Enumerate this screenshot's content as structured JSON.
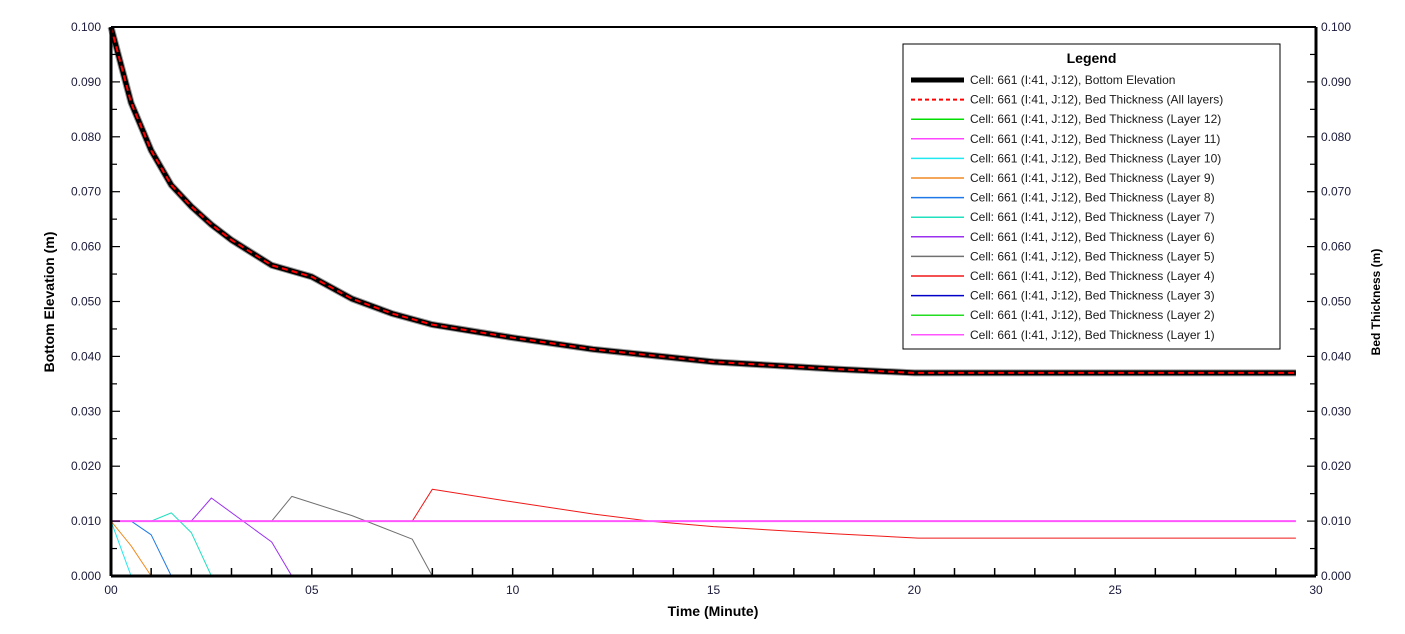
{
  "chart_data": {
    "type": "line",
    "title": "",
    "xlabel": "Time (Minute)",
    "ylabel": "Bottom Elevation (m)",
    "y2label": "Bed Thickness (m)",
    "xlim": [
      0,
      30
    ],
    "ylim": [
      0,
      0.1
    ],
    "y2lim": [
      0,
      0.1
    ],
    "grid": false,
    "legend_position": "upper right (inside)",
    "x_ticks": [
      "00",
      "05",
      "10",
      "15",
      "20",
      "25",
      "30"
    ],
    "y_ticks": [
      "0.000",
      "0.010",
      "0.020",
      "0.030",
      "0.040",
      "0.050",
      "0.060",
      "0.070",
      "0.080",
      "0.090",
      "0.100"
    ],
    "y2_ticks": [
      "0.000",
      "0.010",
      "0.020",
      "0.030",
      "0.040",
      "0.050",
      "0.060",
      "0.070",
      "0.080",
      "0.090",
      "0.100"
    ],
    "legend_title": "Legend",
    "series": [
      {
        "name": "Cell: 661 (I:41, J:12), Bottom Elevation",
        "color": "#000000",
        "width": 5,
        "dash": "",
        "x": [
          0,
          0.5,
          1.0,
          1.5,
          2.0,
          2.5,
          3.0,
          4.0,
          5.0,
          6.0,
          7.0,
          8.0,
          10.0,
          12.0,
          15.0,
          18.0,
          20.0,
          25.0,
          29.5
        ],
        "y": [
          0.1,
          0.0862,
          0.0775,
          0.0712,
          0.0673,
          0.064,
          0.0612,
          0.0566,
          0.0545,
          0.0505,
          0.0478,
          0.0458,
          0.0434,
          0.0413,
          0.039,
          0.0377,
          0.037,
          0.037,
          0.037
        ]
      },
      {
        "name": "Cell: 661 (I:41, J:12), Bed Thickness (All layers)",
        "color": "#ff0000",
        "width": 2,
        "dash": "6,4",
        "x": [
          0,
          0.5,
          1.0,
          1.5,
          2.0,
          2.5,
          3.0,
          4.0,
          5.0,
          6.0,
          7.0,
          8.0,
          10.0,
          12.0,
          15.0,
          18.0,
          20.0,
          25.0,
          29.5
        ],
        "y": [
          0.1,
          0.0862,
          0.0775,
          0.0712,
          0.0673,
          0.064,
          0.0612,
          0.0566,
          0.0545,
          0.0505,
          0.0478,
          0.0458,
          0.0434,
          0.0413,
          0.039,
          0.0377,
          0.037,
          0.037,
          0.037
        ]
      },
      {
        "name": "Cell: 661 (I:41, J:12), Bed Thickness (Layer 12)",
        "color": "#00dd00",
        "width": 1,
        "dash": "",
        "x": [],
        "y": []
      },
      {
        "name": "Cell: 661 (I:41, J:12), Bed Thickness (Layer 11)",
        "color": "#ff44ff",
        "width": 1,
        "dash": "",
        "x": [],
        "y": []
      },
      {
        "name": "Cell: 661 (I:41, J:12), Bed Thickness (Layer 10)",
        "color": "#22e8f0",
        "width": 1,
        "dash": "",
        "x": [
          0,
          0.5
        ],
        "y": [
          0.01,
          0.0
        ]
      },
      {
        "name": "Cell: 661 (I:41, J:12), Bed Thickness (Layer 9)",
        "color": "#f08a20",
        "width": 1,
        "dash": "",
        "x": [
          0,
          0.5,
          1.0
        ],
        "y": [
          0.01,
          0.0055,
          0.0
        ]
      },
      {
        "name": "Cell: 661 (I:41, J:12), Bed Thickness (Layer 8)",
        "color": "#1e78e6",
        "width": 1,
        "dash": "",
        "x": [
          0.5,
          1.0,
          1.5
        ],
        "y": [
          0.01,
          0.0075,
          0.0
        ]
      },
      {
        "name": "Cell: 661 (I:41, J:12), Bed Thickness (Layer 7)",
        "color": "#20e0c0",
        "width": 1,
        "dash": "",
        "x": [
          1.0,
          1.5,
          2.0,
          2.5
        ],
        "y": [
          0.01,
          0.0115,
          0.0079,
          0.0
        ]
      },
      {
        "name": "Cell: 661 (I:41, J:12), Bed Thickness (Layer 6)",
        "color": "#9a30f0",
        "width": 1,
        "dash": "",
        "x": [
          2.0,
          2.5,
          4.0,
          4.5
        ],
        "y": [
          0.01,
          0.0142,
          0.0062,
          0.0
        ]
      },
      {
        "name": "Cell: 661 (I:41, J:12), Bed Thickness (Layer 5)",
        "color": "#707070",
        "width": 1,
        "dash": "",
        "x": [
          4.0,
          4.5,
          6.0,
          7.5,
          8.0
        ],
        "y": [
          0.01,
          0.0145,
          0.011,
          0.0067,
          0.0
        ]
      },
      {
        "name": "Cell: 661 (I:41, J:12), Bed Thickness (Layer 4)",
        "color": "#f01818",
        "width": 1,
        "dash": "",
        "x": [
          7.5,
          8.0,
          10.0,
          12.0,
          13.4,
          15.0,
          18.0,
          20.1,
          25.0,
          29.5
        ],
        "y": [
          0.01,
          0.0158,
          0.0135,
          0.0113,
          0.01,
          0.009,
          0.0077,
          0.0069,
          0.0069,
          0.0069
        ]
      },
      {
        "name": "Cell: 661 (I:41, J:12), Bed Thickness (Layer 3)",
        "color": "#0000c8",
        "width": 1,
        "dash": "",
        "x": [],
        "y": []
      },
      {
        "name": "Cell: 661 (I:41, J:12), Bed Thickness (Layer 2)",
        "color": "#22dd22",
        "width": 1,
        "dash": "",
        "x": [],
        "y": []
      },
      {
        "name": "Cell: 661 (I:41, J:12), Bed Thickness (Layer 1)",
        "color": "#ff55ff",
        "width": 2,
        "dash": "",
        "x": [
          0,
          29.5
        ],
        "y": [
          0.01,
          0.01
        ]
      }
    ]
  }
}
